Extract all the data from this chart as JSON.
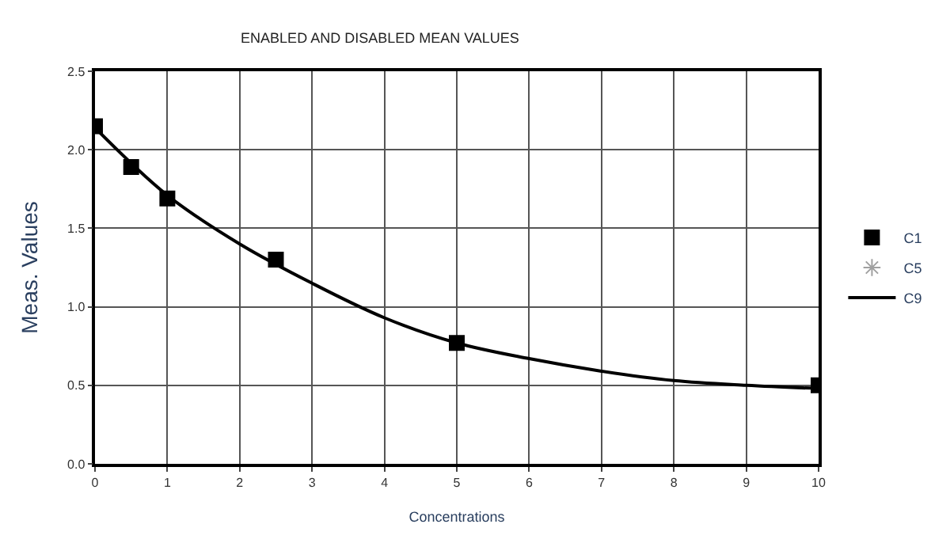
{
  "chart_data": {
    "type": "scatter",
    "title": "ENABLED AND DISABLED MEAN VALUES",
    "xlabel": "Concentrations",
    "ylabel": "Meas. Values",
    "series": [
      {
        "name": "C1",
        "marker": "square",
        "color": "#000000",
        "x": [
          0,
          0.5,
          1,
          2.5,
          5,
          10
        ],
        "values": [
          2.15,
          1.89,
          1.69,
          1.3,
          0.77,
          0.5
        ]
      },
      {
        "name": "C5",
        "marker": "star",
        "color": "#a0a0a0",
        "values": [
          null
        ]
      },
      {
        "name": "C9",
        "type": "line",
        "marker": "none",
        "color": "#000000",
        "x": [
          0,
          1,
          2,
          3,
          4,
          5,
          6,
          7,
          8,
          9,
          10
        ],
        "values": [
          2.14,
          1.71,
          1.4,
          1.15,
          0.93,
          0.77,
          0.67,
          0.59,
          0.53,
          0.5,
          0.48
        ]
      }
    ],
    "xlim": [
      0,
      10
    ],
    "xticks": [
      0,
      1,
      2,
      3,
      4,
      5,
      6,
      7,
      8,
      9,
      10
    ],
    "ylim": [
      0,
      2.5
    ],
    "yticks": [
      {
        "value": 0,
        "label": "0.0"
      },
      0.5,
      {
        "value": 1,
        "label": "1.0"
      },
      1.5,
      {
        "value": 2,
        "label": "2.0"
      },
      2.5
    ],
    "grid": true,
    "legend": "right"
  }
}
